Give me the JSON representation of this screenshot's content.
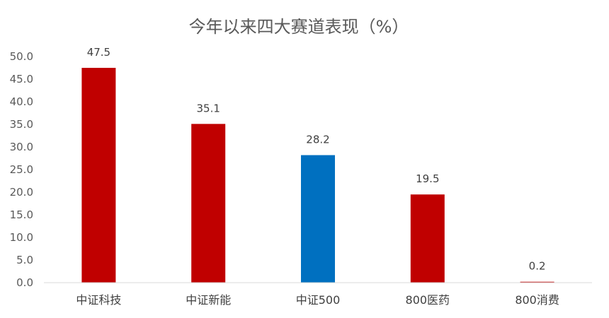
{
  "chart_data": {
    "type": "bar",
    "title": "今年以来四大赛道表现（%）",
    "categories": [
      "中证科技",
      "中证新能",
      "中证500",
      "800医药",
      "800消费"
    ],
    "values": [
      47.5,
      35.1,
      28.2,
      19.5,
      0.2
    ],
    "value_labels": [
      "47.5",
      "35.1",
      "28.2",
      "19.5",
      "0.2"
    ],
    "bar_colors": [
      "#C00000",
      "#C00000",
      "#0070C0",
      "#C00000",
      "#C00000"
    ],
    "ylim": [
      0,
      50
    ],
    "y_ticks": [
      "0.0",
      "5.0",
      "10.0",
      "15.0",
      "20.0",
      "25.0",
      "30.0",
      "35.0",
      "40.0",
      "45.0",
      "50.0"
    ],
    "y_tick_values": [
      0,
      5,
      10,
      15,
      20,
      25,
      30,
      35,
      40,
      45,
      50
    ],
    "grid": false,
    "legend": "none",
    "axis_color": "#D9D9D9"
  }
}
